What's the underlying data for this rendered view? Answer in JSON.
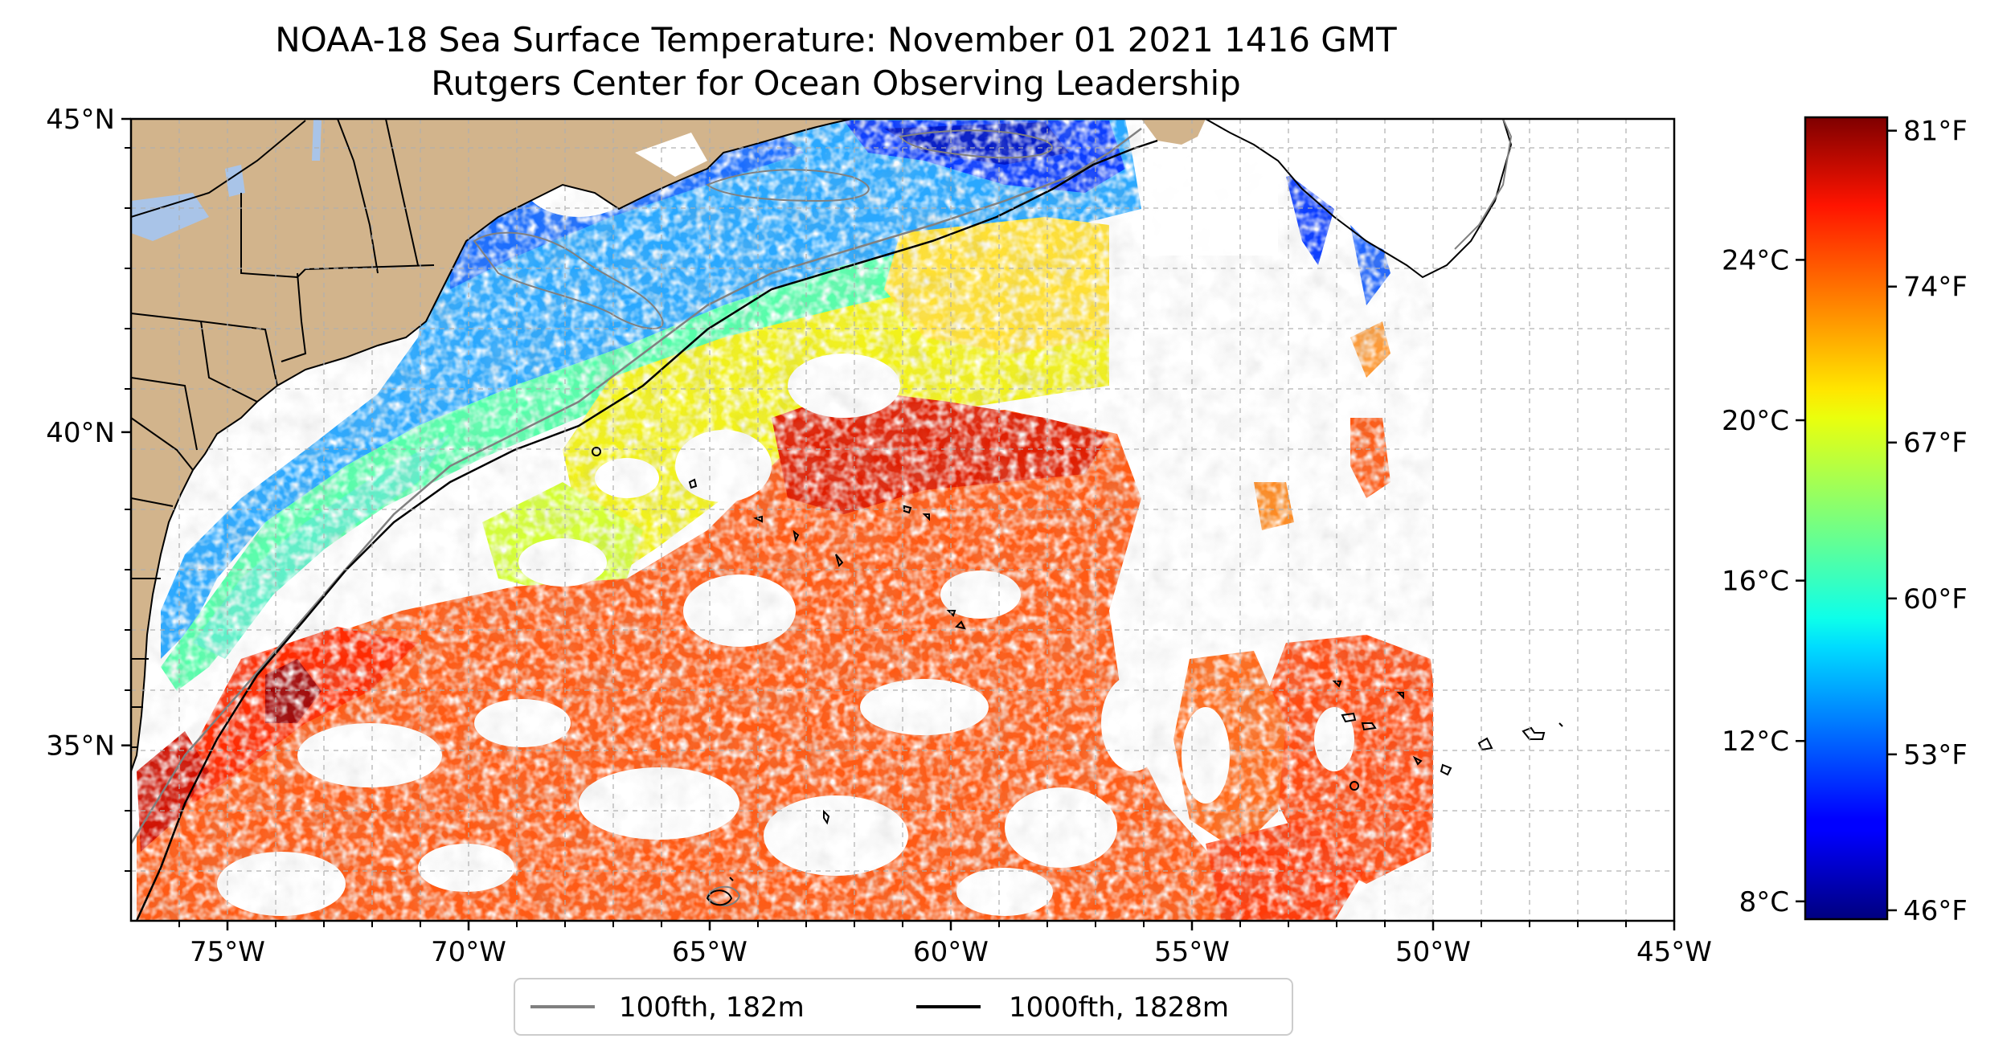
{
  "title": {
    "line1": "NOAA-18 Sea Surface Temperature: November 01 2021 1416 GMT",
    "line2": "Rutgers Center for Ocean Observing Leadership"
  },
  "map": {
    "lon_range": [
      -77,
      -45
    ],
    "lat_range": [
      32.2,
      45
    ],
    "x_ticks": [
      {
        "lon": -75,
        "label": "75°W"
      },
      {
        "lon": -70,
        "label": "70°W"
      },
      {
        "lon": -65,
        "label": "65°W"
      },
      {
        "lon": -60,
        "label": "60°W"
      },
      {
        "lon": -55,
        "label": "55°W"
      },
      {
        "lon": -50,
        "label": "50°W"
      },
      {
        "lon": -45,
        "label": "45°W"
      }
    ],
    "y_ticks": [
      {
        "lat": 45,
        "label": "45°N"
      },
      {
        "lat": 40,
        "label": "40°N"
      },
      {
        "lat": 35,
        "label": "35°N"
      }
    ],
    "gridlines": true,
    "land_color": "#d2b48c"
  },
  "legend": {
    "placement": "bottom-center",
    "entries": [
      {
        "label": "100fth, 182m",
        "color": "#808080"
      },
      {
        "label": "1000fth, 1828m",
        "color": "#000000"
      }
    ]
  },
  "colorbar": {
    "colormap": "jet",
    "celsius_ticks": [
      {
        "value": 8,
        "label": "8°C"
      },
      {
        "value": 12,
        "label": "12°C"
      },
      {
        "value": 16,
        "label": "16°C"
      },
      {
        "value": 20,
        "label": "20°C"
      },
      {
        "value": 24,
        "label": "24°C"
      }
    ],
    "fahrenheit_ticks": [
      {
        "value": 46,
        "label": "46°F"
      },
      {
        "value": 53,
        "label": "53°F"
      },
      {
        "value": 60,
        "label": "60°F"
      },
      {
        "value": 67,
        "label": "67°F"
      },
      {
        "value": 74,
        "label": "74°F"
      },
      {
        "value": 81,
        "label": "81°F"
      }
    ],
    "range_f": [
      45.6,
      81.6
    ]
  }
}
